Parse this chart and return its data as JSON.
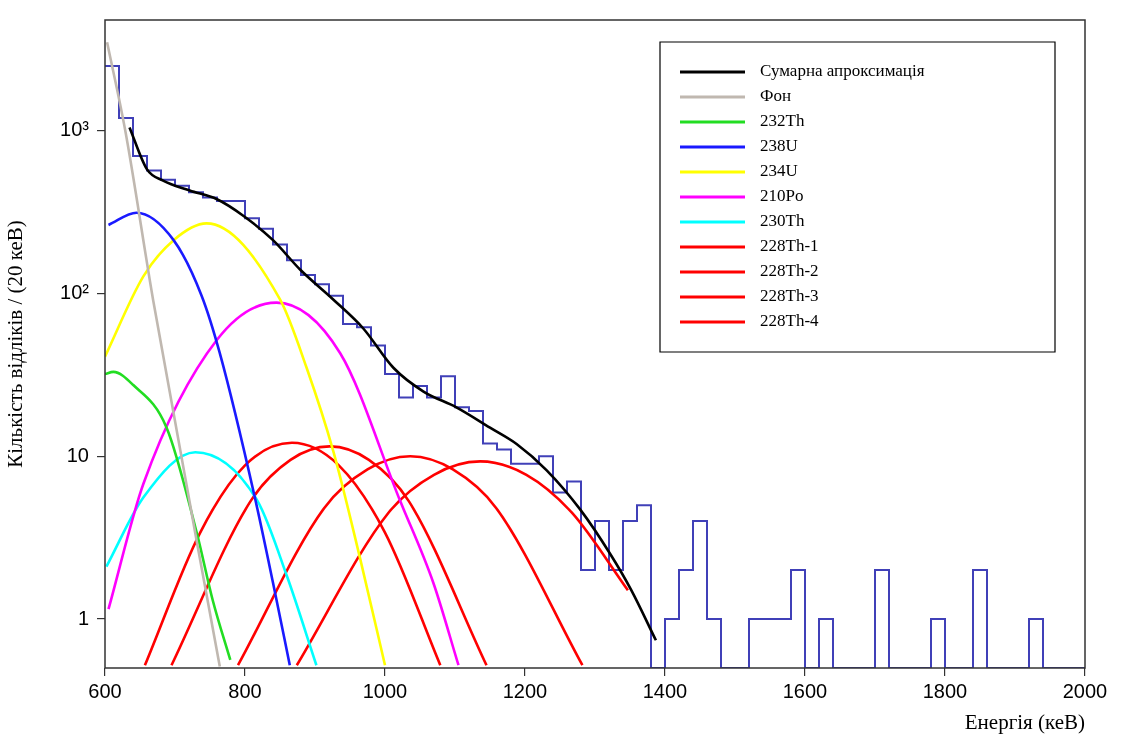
{
  "chart_data": {
    "type": "histogram",
    "xlabel": "Енергія (кеВ)",
    "ylabel": "Кількість відліків / (20 кеВ)",
    "log": "y",
    "grid": false,
    "legend": "top right",
    "marker": "none",
    "line_style": "solid",
    "xlim": [
      600,
      2000
    ],
    "xticks": [
      600,
      800,
      1000,
      1200,
      1400,
      1600,
      1800,
      2000
    ],
    "ylim": [
      0.5,
      4800
    ],
    "yticks": [
      1,
      10,
      {
        "value": 100,
        "label": "10²"
      },
      {
        "value": 1000,
        "label": "10³"
      }
    ],
    "color": "#4040b8",
    "bins": [
      600,
      620,
      640,
      660,
      680,
      700,
      720,
      740,
      760,
      780,
      800,
      820,
      840,
      860,
      880,
      900,
      920,
      940,
      960,
      980,
      1000,
      1020,
      1040,
      1060,
      1080,
      1100,
      1120,
      1140,
      1160,
      1180,
      1200,
      1220,
      1240,
      1260,
      1280,
      1300,
      1320,
      1340,
      1360,
      1380,
      1400,
      1420,
      1440,
      1460,
      1480,
      1500,
      1520,
      1540,
      1560,
      1580,
      1600,
      1620,
      1640,
      1660,
      1680,
      1700,
      1720,
      1740,
      1760,
      1780,
      1800,
      1820,
      1840,
      1860,
      1880,
      1900,
      1920,
      1940,
      1960,
      1980,
      2000
    ],
    "values": [
      2500,
      1200,
      700,
      570,
      500,
      460,
      420,
      390,
      370,
      370,
      290,
      250,
      200,
      160,
      130,
      114,
      97,
      65,
      62,
      48,
      32,
      23,
      27,
      23,
      31,
      20,
      19,
      12,
      11,
      9,
      9,
      10,
      6,
      7,
      2,
      4,
      2,
      4,
      5,
      null,
      1,
      2,
      4,
      1,
      null,
      null,
      1,
      1,
      1,
      2,
      null,
      1,
      null,
      null,
      null,
      2,
      null,
      null,
      null,
      1,
      null,
      null,
      2,
      null,
      null,
      null,
      1,
      null,
      null,
      null
    ],
    "series": [
      {
        "type": "line",
        "name": "Сумарна апроксимація",
        "color": "#000000",
        "x": [
          635,
          660,
          683,
          721,
          760,
          798,
          840,
          879,
          926,
          969,
          1012,
          1055,
          1102,
          1150,
          1188,
          1231,
          1279,
          1322,
          1352,
          1387
        ],
        "values": [
          1050,
          580,
          495,
          430,
          380,
          300,
          213,
          140,
          92,
          61,
          35,
          25,
          20,
          15,
          11.9,
          8.2,
          4.7,
          2.5,
          1.5,
          0.74
        ]
      },
      {
        "type": "line",
        "name": "Фон",
        "color": "#c0b8b0",
        "x": [
          603,
          629,
          669,
          764
        ],
        "values": [
          3500,
          1000,
          90,
          0.51
        ]
      },
      {
        "type": "line",
        "name": "232Th",
        "color": "#22dd22",
        "x": [
          600,
          612,
          640,
          688,
          731,
          754,
          779
        ],
        "values": [
          32,
          33,
          27.5,
          15,
          3.4,
          1.3,
          0.56
        ]
      },
      {
        "type": "line",
        "name": "238U",
        "color": "#1a1aff",
        "x": [
          605,
          645,
          698,
          738,
          764,
          814,
          840,
          864
        ],
        "values": [
          264,
          314,
          213,
          97,
          43,
          5.6,
          1.67,
          0.52
        ]
      },
      {
        "type": "line",
        "name": "234U",
        "color": "#ffff00",
        "x": [
          600,
          655,
          698,
          745,
          850,
          888,
          926,
          964,
          1000
        ],
        "values": [
          41,
          128,
          213,
          270,
          92,
          35,
          10.8,
          2.4,
          0.52
        ]
      },
      {
        "type": "line",
        "name": "210Po",
        "color": "#ff00ff",
        "x": [
          605,
          655,
          760,
          845,
          936,
          1021,
          1069,
          1105
        ],
        "values": [
          1.15,
          6.8,
          52,
          88,
          43,
          5.4,
          1.67,
          0.52
        ]
      },
      {
        "type": "line",
        "name": "230Th",
        "color": "#00ffff",
        "x": [
          602,
          655,
          729,
          817,
          860,
          902
        ],
        "values": [
          2.1,
          5.6,
          10.6,
          5.4,
          1.83,
          0.52
        ]
      },
      {
        "type": "line",
        "name": "228Th-1",
        "color": "#ff0000",
        "x": [
          657,
          736,
          800,
          867,
          934,
          1000,
          1079
        ],
        "values": [
          0.52,
          3.4,
          8.8,
          12.1,
          8.8,
          3.4,
          0.52
        ]
      },
      {
        "type": "line",
        "name": "228Th-2",
        "color": "#ff0000",
        "x": [
          695,
          808,
          865,
          921,
          977,
          1034,
          1145
        ],
        "values": [
          0.52,
          5.3,
          9.5,
          11.5,
          9.5,
          5.3,
          0.52
        ]
      },
      {
        "type": "line",
        "name": "228Th-3",
        "color": "#ff0000",
        "x": [
          790,
          913,
          975,
          1036,
          1097,
          1159,
          1282
        ],
        "values": [
          0.52,
          4.8,
          8.3,
          10,
          8.3,
          4.8,
          0.52
        ]
      },
      {
        "type": "line",
        "name": "228Th-4",
        "color": "#ff0000",
        "x": [
          874,
          1005,
          1070,
          1136,
          1202,
          1267,
          1347
        ],
        "values": [
          0.52,
          4.5,
          7.7,
          9.3,
          7.7,
          4.5,
          1.5
        ]
      }
    ]
  }
}
